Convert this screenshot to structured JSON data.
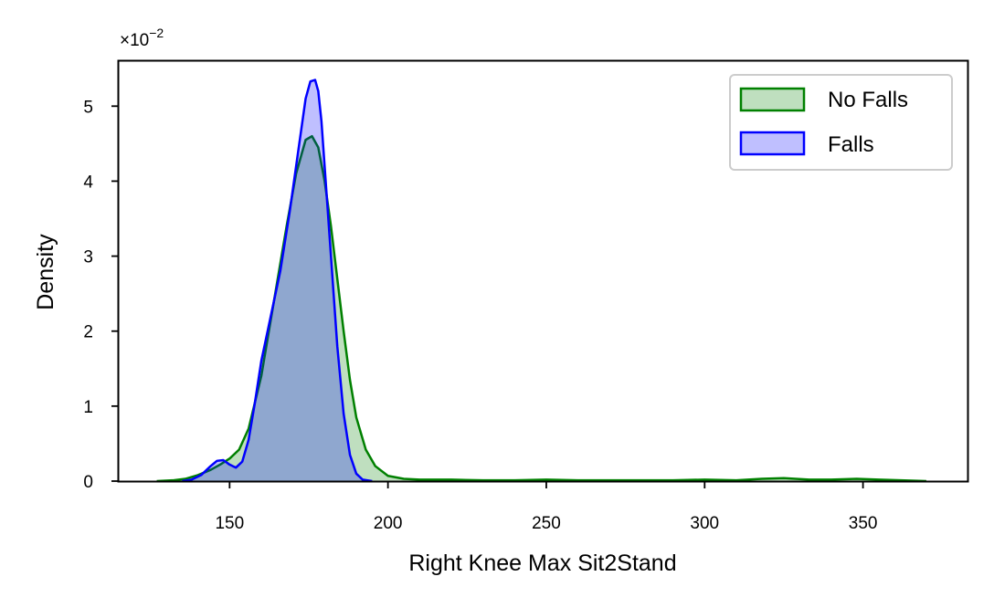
{
  "chart_data": {
    "type": "area",
    "title": "",
    "xlabel": "Right Knee Max Sit2Stand",
    "ylabel": "Density",
    "y_offset_label": "×10",
    "y_offset_exponent": "−2",
    "xlim": [
      115,
      383
    ],
    "ylim": [
      0,
      5.6
    ],
    "x_ticks": [
      150,
      200,
      250,
      300,
      350
    ],
    "y_ticks": [
      0,
      1,
      2,
      3,
      4,
      5
    ],
    "grid": false,
    "legend_position": "top-right",
    "series": [
      {
        "name": "No Falls",
        "edge_color": "#008000",
        "fill_color": "#008000",
        "fill_opacity": 0.25,
        "x": [
          127,
          132,
          136,
          140,
          144,
          147,
          150,
          153,
          156,
          160,
          164,
          168,
          171,
          174,
          176,
          178,
          180,
          182,
          184,
          186,
          188,
          190,
          193,
          196,
          200,
          205,
          210,
          220,
          230,
          240,
          250,
          260,
          270,
          280,
          290,
          300,
          310,
          318,
          325,
          333,
          340,
          348,
          355,
          362,
          370
        ],
        "y": [
          0,
          0.01,
          0.03,
          0.08,
          0.15,
          0.22,
          0.3,
          0.42,
          0.7,
          1.4,
          2.4,
          3.4,
          4.1,
          4.55,
          4.6,
          4.45,
          4.0,
          3.4,
          2.7,
          2.0,
          1.35,
          0.85,
          0.42,
          0.2,
          0.07,
          0.03,
          0.02,
          0.02,
          0.01,
          0.01,
          0.02,
          0.01,
          0.01,
          0.01,
          0.01,
          0.02,
          0.01,
          0.03,
          0.04,
          0.02,
          0.02,
          0.03,
          0.02,
          0.01,
          0
        ]
      },
      {
        "name": "Falls",
        "edge_color": "#0000ff",
        "fill_color": "#0000ff",
        "fill_opacity": 0.25,
        "x": [
          135,
          138,
          141,
          144,
          146,
          148,
          150,
          152,
          154,
          156,
          158,
          160,
          163,
          166,
          169,
          172,
          174,
          175.5,
          177,
          178,
          179,
          180,
          182,
          184,
          186,
          188,
          190,
          192,
          195
        ],
        "y": [
          0,
          0.02,
          0.08,
          0.2,
          0.27,
          0.28,
          0.22,
          0.18,
          0.26,
          0.55,
          1.05,
          1.6,
          2.2,
          2.8,
          3.6,
          4.5,
          5.1,
          5.33,
          5.35,
          5.2,
          4.8,
          4.2,
          3.0,
          1.8,
          0.9,
          0.35,
          0.1,
          0.02,
          0
        ]
      }
    ]
  }
}
